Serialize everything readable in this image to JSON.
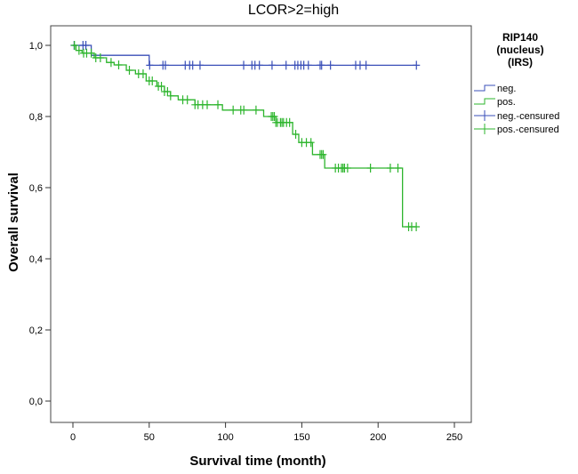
{
  "chart_data": {
    "type": "line",
    "subtype": "kaplan-meier",
    "title": "LCOR>2=high",
    "xlabel": "Survival time (month)",
    "ylabel": "Overall survival",
    "xlim": [
      0,
      250
    ],
    "ylim": [
      0,
      1
    ],
    "xticks": [
      "0",
      "50",
      "100",
      "150",
      "200",
      "250"
    ],
    "yticks": [
      "0,0",
      "0,2",
      "0,4",
      "0,6",
      "0,8",
      "1,0"
    ],
    "grid": false,
    "legend": {
      "title_lines": [
        "RIP140",
        "(nucleus)",
        "(IRS)"
      ],
      "placement": "right",
      "entries": [
        "neg.",
        "pos.",
        "neg.-censured",
        "pos.-censured"
      ]
    },
    "series": [
      {
        "name": "neg.",
        "color": "#3a4fb8",
        "steps": [
          [
            0,
            1.0
          ],
          [
            12,
            0.972
          ],
          [
            50,
            0.944
          ]
        ],
        "end": 225,
        "censored": [
          0.8,
          6.6,
          8.5,
          50.3,
          59,
          60.6,
          73.6,
          76.5,
          78.5,
          83.3,
          111.9,
          117.3,
          119.3,
          122.2,
          130.5,
          139.7,
          145.5,
          147.4,
          149.4,
          151.3,
          154.3,
          162,
          163,
          168.8,
          185.3,
          188.2,
          192.1,
          225.1
        ]
      },
      {
        "name": "pos.",
        "color": "#2db52d",
        "steps": [
          [
            0,
            1.0
          ],
          [
            2,
            0.986
          ],
          [
            6,
            0.978
          ],
          [
            14,
            0.965
          ],
          [
            22,
            0.952
          ],
          [
            27,
            0.945
          ],
          [
            35,
            0.93
          ],
          [
            41,
            0.92
          ],
          [
            48,
            0.9
          ],
          [
            55,
            0.885
          ],
          [
            60,
            0.87
          ],
          [
            64,
            0.858
          ],
          [
            69,
            0.847
          ],
          [
            80,
            0.833
          ],
          [
            98,
            0.818
          ],
          [
            125,
            0.8
          ],
          [
            133,
            0.783
          ],
          [
            144,
            0.75
          ],
          [
            148,
            0.727
          ],
          [
            157,
            0.693
          ],
          [
            165,
            0.655
          ],
          [
            216,
            0.49
          ]
        ],
        "end": 225,
        "censored": [
          1,
          4,
          7,
          9,
          12,
          15,
          18,
          25,
          30,
          37,
          43,
          46,
          50,
          52,
          56,
          58,
          60,
          62,
          64,
          72,
          75,
          80,
          82,
          85,
          88,
          95,
          105,
          110,
          112,
          120,
          130,
          131,
          132,
          133,
          134,
          136,
          137,
          138,
          140,
          142,
          146,
          150,
          153,
          156,
          162,
          163,
          164,
          172,
          174,
          176,
          177,
          178,
          180,
          195,
          208,
          213,
          220,
          222,
          225
        ]
      }
    ]
  }
}
